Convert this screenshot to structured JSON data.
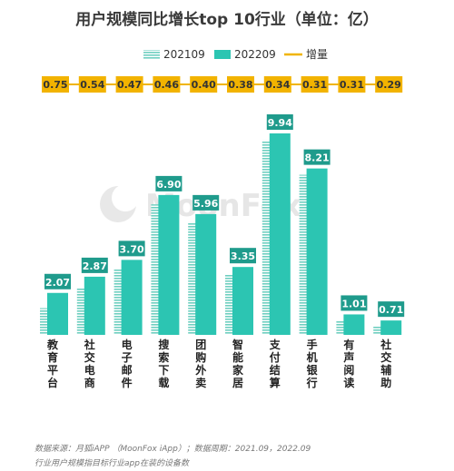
{
  "chart_data": {
    "type": "bar",
    "title": "用户规模同比增长top 10行业（单位：亿）",
    "categories": [
      "教育平台",
      "社交电商",
      "电子邮件",
      "搜索下载",
      "团购外卖",
      "智能家居",
      "支付结算",
      "手机银行",
      "有声阅读",
      "社交辅助"
    ],
    "series": [
      {
        "name": "202109",
        "type": "bar",
        "values": [
          1.32,
          2.33,
          3.23,
          6.44,
          5.56,
          2.97,
          9.6,
          7.9,
          0.7,
          0.42
        ],
        "color": "#7fd6c8",
        "pattern": "striped"
      },
      {
        "name": "202209",
        "type": "bar",
        "values": [
          2.07,
          2.87,
          3.7,
          6.9,
          5.96,
          3.35,
          9.94,
          8.21,
          1.01,
          0.71
        ],
        "color": "#2cc5b2"
      },
      {
        "name": "增量",
        "type": "line",
        "values": [
          0.75,
          0.54,
          0.47,
          0.46,
          0.4,
          0.38,
          0.34,
          0.31,
          0.31,
          0.29
        ],
        "color": "#f0b400"
      }
    ],
    "value_labels": [
      "2.07",
      "2.87",
      "3.70",
      "6.90",
      "5.96",
      "3.35",
      "9.94",
      "8.21",
      "1.01",
      "0.71"
    ],
    "increment_labels": [
      "0.75",
      "0.54",
      "0.47",
      "0.46",
      "0.40",
      "0.38",
      "0.34",
      "0.31",
      "0.31",
      "0.29"
    ],
    "ylim": [
      0,
      10.5
    ],
    "legend_position": "top-center",
    "grid": false
  },
  "watermark": "MoonFox",
  "notes": {
    "source": "数据来源：月狐iAPP （MoonFox iApp）；数据周期：2021.09，2022.09",
    "definition": "行业用户规模指目标行业app在装的设备数"
  }
}
